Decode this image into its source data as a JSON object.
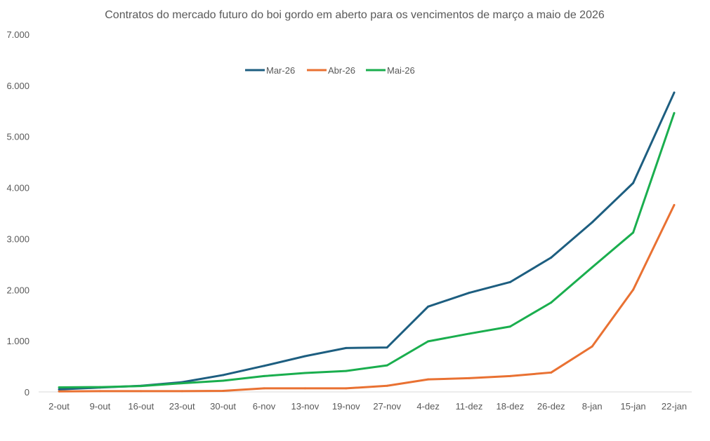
{
  "chart_data": {
    "type": "line",
    "title": "Contratos do mercado futuro do boi gordo em aberto para os vencimentos de março a maio de 2026",
    "xlabel": "",
    "ylabel": "",
    "categories": [
      "2-out",
      "9-out",
      "16-out",
      "23-out",
      "30-out",
      "6-nov",
      "13-nov",
      "19-nov",
      "27-nov",
      "4-dez",
      "11-dez",
      "18-dez",
      "26-dez",
      "8-jan",
      "15-jan",
      "22-jan"
    ],
    "ylim": [
      0,
      7000
    ],
    "yticks": [
      0,
      1000,
      2000,
      3000,
      4000,
      5000,
      6000,
      7000
    ],
    "ytick_labels": [
      "0",
      "1.000",
      "2.000",
      "3.000",
      "4.000",
      "5.000",
      "6.000",
      "7.000"
    ],
    "grid": false,
    "legend_position": "top",
    "series": [
      {
        "name": "Mar-26",
        "color": "#1D5E80",
        "values": [
          50,
          85,
          120,
          190,
          330,
          510,
          700,
          860,
          870,
          1670,
          1940,
          2150,
          2630,
          3320,
          4090,
          5860
        ]
      },
      {
        "name": "Abr-26",
        "color": "#E97132",
        "values": [
          10,
          15,
          15,
          15,
          20,
          70,
          70,
          70,
          120,
          245,
          270,
          310,
          380,
          890,
          2000,
          3660
        ]
      },
      {
        "name": "Mai-26",
        "color": "#1AAE4E",
        "values": [
          90,
          95,
          115,
          170,
          220,
          310,
          370,
          410,
          520,
          990,
          1140,
          1280,
          1750,
          2440,
          3120,
          5460
        ]
      }
    ]
  }
}
